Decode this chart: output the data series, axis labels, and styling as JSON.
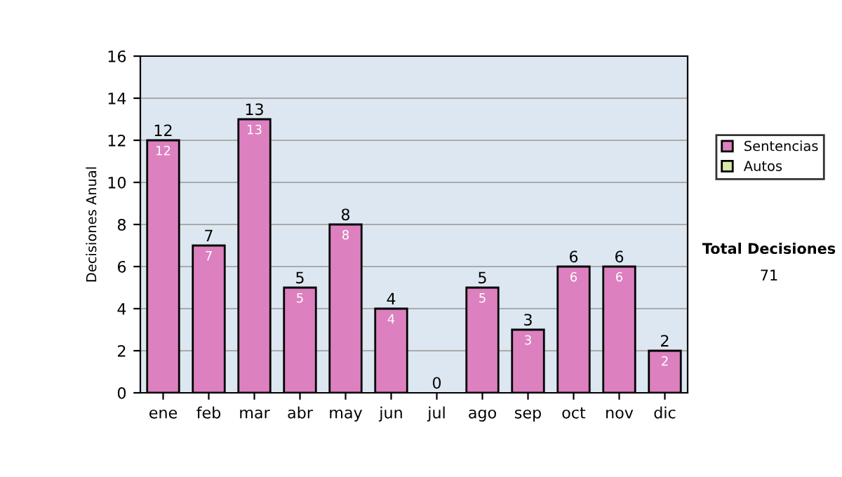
{
  "chart_data": {
    "type": "bar",
    "stacked": true,
    "ylabel": "Decisiones Anual",
    "categories": [
      "ene",
      "feb",
      "mar",
      "abr",
      "may",
      "jun",
      "jul",
      "ago",
      "sep",
      "oct",
      "nov",
      "dic"
    ],
    "series": [
      {
        "name": "Sentencias",
        "color": "#dc80bf",
        "values": [
          12,
          7,
          13,
          5,
          8,
          4,
          0,
          5,
          3,
          6,
          6,
          2
        ],
        "value_labels": [
          "12",
          "7",
          "13",
          "5",
          "8",
          "4",
          null,
          "5",
          "3",
          "6",
          "6",
          "2"
        ]
      },
      {
        "name": "Autos",
        "color": "#d8eaa8",
        "values": [
          0,
          0,
          0,
          0,
          0,
          0,
          0,
          0,
          0,
          0,
          0,
          0
        ]
      }
    ],
    "totals": [
      "12",
      "7",
      "13",
      "5",
      "8",
      "4",
      "0",
      "5",
      "3",
      "6",
      "6",
      "2"
    ],
    "ylim": [
      0,
      16
    ],
    "yticks": [
      0,
      2,
      4,
      6,
      8,
      10,
      12,
      14,
      16
    ],
    "grid": "y",
    "legend": "right",
    "annotations": [
      "Total Decisiones",
      "71"
    ]
  }
}
